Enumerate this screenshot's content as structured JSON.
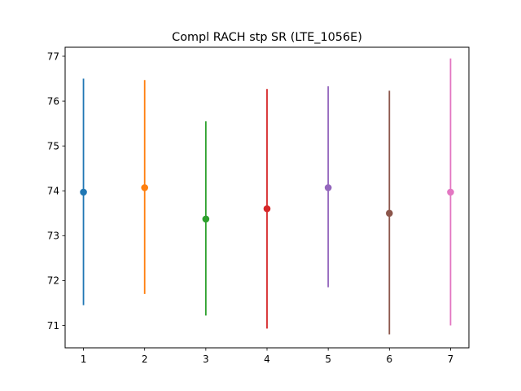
{
  "chart_data": {
    "type": "scatter",
    "title": "Compl RACH stp SR (LTE_1056E)",
    "xlabel": "",
    "ylabel": "",
    "xlim": [
      0.7,
      7.3
    ],
    "ylim": [
      70.5,
      77.2
    ],
    "xticks": [
      1,
      2,
      3,
      4,
      5,
      6,
      7
    ],
    "yticks": [
      71,
      72,
      73,
      74,
      75,
      76,
      77
    ],
    "grid": false,
    "points": [
      {
        "x": 1,
        "y": 73.97,
        "low": 71.45,
        "high": 76.5,
        "color": "#1f77b4"
      },
      {
        "x": 2,
        "y": 74.07,
        "low": 71.7,
        "high": 76.47,
        "color": "#ff7f0e"
      },
      {
        "x": 3,
        "y": 73.37,
        "low": 71.22,
        "high": 75.55,
        "color": "#2ca02c"
      },
      {
        "x": 4,
        "y": 73.6,
        "low": 70.93,
        "high": 76.27,
        "color": "#d62728"
      },
      {
        "x": 5,
        "y": 74.07,
        "low": 71.85,
        "high": 76.33,
        "color": "#9467bd"
      },
      {
        "x": 6,
        "y": 73.5,
        "low": 70.8,
        "high": 76.23,
        "color": "#8c564b"
      },
      {
        "x": 7,
        "y": 73.97,
        "low": 71.0,
        "high": 76.95,
        "color": "#e377c2"
      }
    ]
  }
}
